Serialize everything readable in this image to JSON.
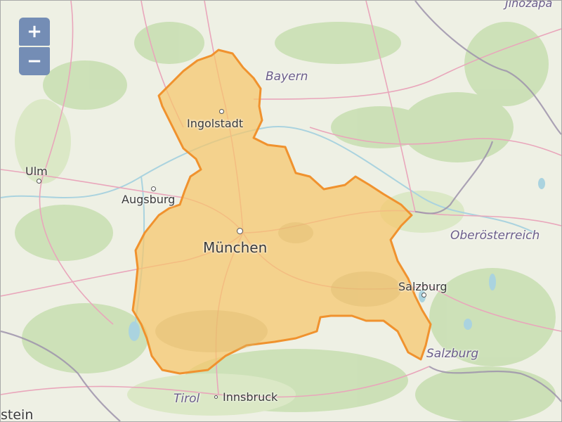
{
  "zoom": {
    "in_label": "+",
    "out_label": "−"
  },
  "labels": {
    "jihozapad": "Jihozápa",
    "bayern": "Bayern",
    "ingolstadt": "Ingolstadt",
    "ulm": "Ulm",
    "augsburg": "Augsburg",
    "muenchen": "München",
    "oberoesterreich": "Oberösterreich",
    "salzburg_city": "Salzburg",
    "salzburg_region": "Salzburg",
    "tirol": "Tirol",
    "innsbruck": "Innsbruck",
    "stein": "stein"
  },
  "colors": {
    "highlight_fill": "#f6c66b",
    "highlight_stroke": "#f0922e",
    "roads": "#e7a2b8",
    "borders": "#9a8fa6",
    "water": "#aad3df",
    "forest": "#c6ddb0"
  }
}
